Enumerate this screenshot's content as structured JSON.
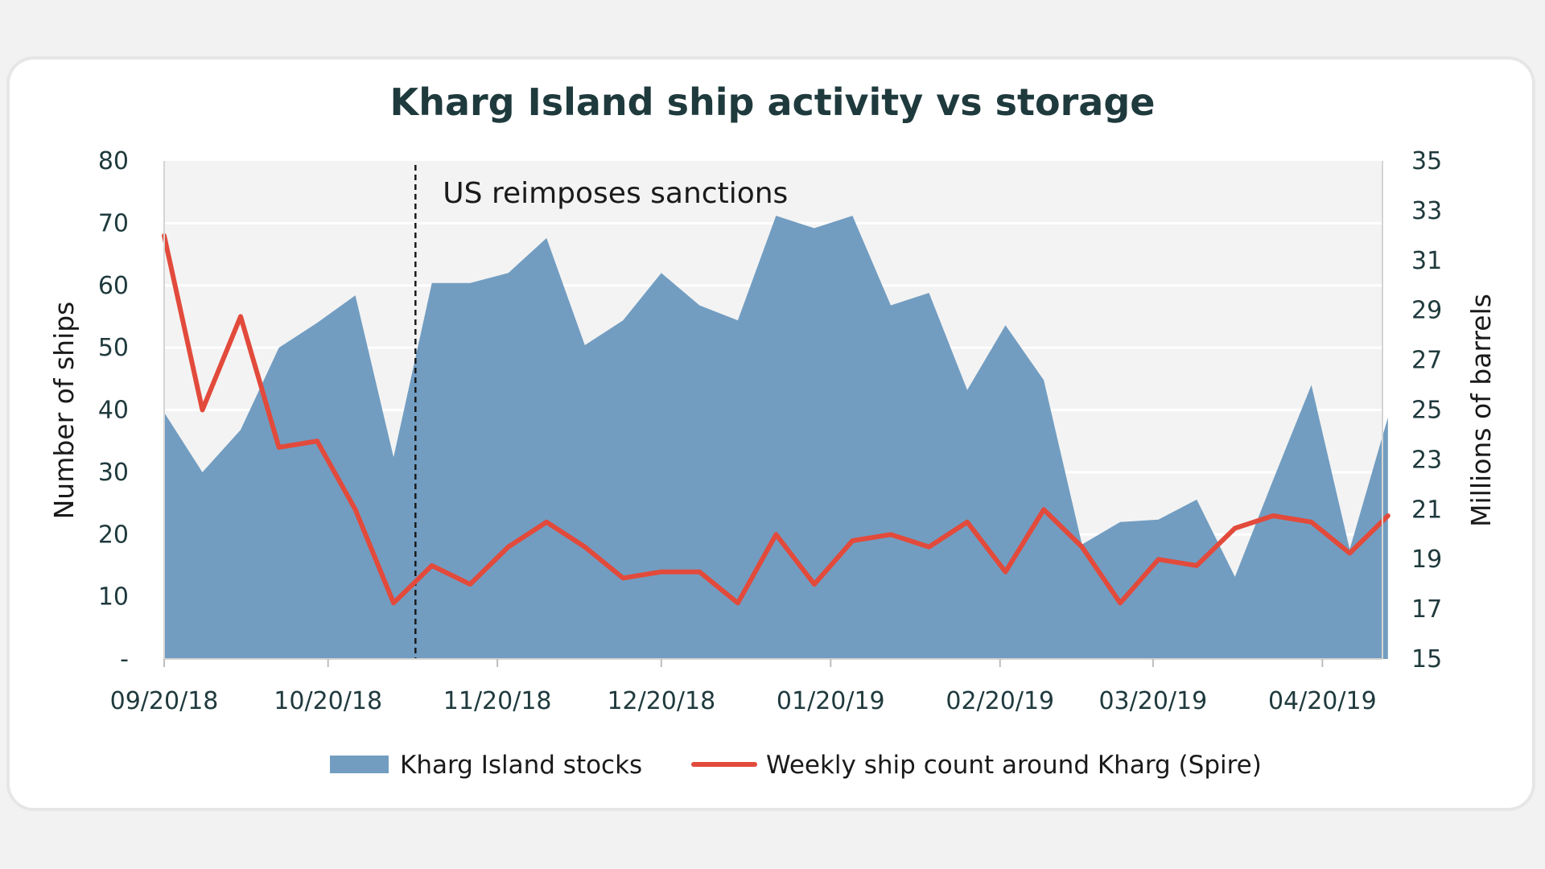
{
  "chart_data": {
    "type": "area+line",
    "title": "Kharg Island ship activity vs storage",
    "ylabel_left": "Number of ships",
    "ylabel_right": "Millions of barrels",
    "x_tick_labels": [
      "09/20/18",
      "10/20/18",
      "11/20/18",
      "12/20/18",
      "01/20/19",
      "02/20/19",
      "03/20/19",
      "04/20/19"
    ],
    "x_tick_dates": [
      "2018-09-20",
      "2018-10-20",
      "2018-11-20",
      "2018-12-20",
      "2019-01-20",
      "2019-02-20",
      "2019-03-20",
      "2019-04-20"
    ],
    "x_range": [
      "2018-09-20",
      "2019-05-01"
    ],
    "y_left_ticks": [
      "-",
      "10",
      "20",
      "30",
      "40",
      "50",
      "60",
      "70",
      "80"
    ],
    "y_left_range": [
      0,
      80
    ],
    "y_right_ticks": [
      "15",
      "17",
      "19",
      "21",
      "23",
      "25",
      "27",
      "29",
      "31",
      "33",
      "35"
    ],
    "y_right_range": [
      15,
      35
    ],
    "grid": "horizontal",
    "legend_position": "bottom",
    "annotation": {
      "text": "US reimposes sanctions",
      "date": "2018-11-05"
    },
    "series": [
      {
        "name": "Kharg Island stocks",
        "kind": "area",
        "axis": "right",
        "color": "#729dc1",
        "dates": [
          "2018-09-20",
          "2018-09-27",
          "2018-10-04",
          "2018-10-11",
          "2018-10-18",
          "2018-10-25",
          "2018-11-01",
          "2018-11-08",
          "2018-11-15",
          "2018-11-22",
          "2018-11-29",
          "2018-12-06",
          "2018-12-13",
          "2018-12-20",
          "2018-12-27",
          "2019-01-03",
          "2019-01-10",
          "2019-01-17",
          "2019-01-24",
          "2019-01-31",
          "2019-02-07",
          "2019-02-14",
          "2019-02-21",
          "2019-02-28",
          "2019-03-07",
          "2019-03-14",
          "2019-03-21",
          "2019-03-28",
          "2019-04-04",
          "2019-04-11",
          "2019-04-18",
          "2019-04-25",
          "2019-05-02"
        ],
        "values": [
          24.9,
          22.5,
          24.2,
          27.5,
          28.5,
          29.6,
          23.1,
          30.1,
          30.1,
          30.5,
          31.9,
          27.6,
          28.6,
          30.5,
          29.2,
          28.6,
          32.8,
          32.3,
          32.8,
          29.2,
          29.7,
          25.8,
          28.4,
          26.2,
          19.6,
          20.5,
          20.6,
          21.4,
          18.3,
          22.2,
          26.0,
          19.4,
          24.7
        ]
      },
      {
        "name": "Weekly ship count around Kharg (Spire)",
        "kind": "line",
        "axis": "left",
        "color": "#e24a3b",
        "dates": [
          "2018-09-20",
          "2018-09-27",
          "2018-10-04",
          "2018-10-11",
          "2018-10-18",
          "2018-10-25",
          "2018-11-01",
          "2018-11-08",
          "2018-11-15",
          "2018-11-22",
          "2018-11-29",
          "2018-12-06",
          "2018-12-13",
          "2018-12-20",
          "2018-12-27",
          "2019-01-03",
          "2019-01-10",
          "2019-01-17",
          "2019-01-24",
          "2019-01-31",
          "2019-02-07",
          "2019-02-14",
          "2019-02-21",
          "2019-02-28",
          "2019-03-07",
          "2019-03-14",
          "2019-03-21",
          "2019-03-28",
          "2019-04-04",
          "2019-04-11",
          "2019-04-18",
          "2019-04-25",
          "2019-05-02"
        ],
        "values": [
          68,
          40,
          55,
          34,
          35,
          24,
          9,
          15,
          12,
          18,
          22,
          18,
          13,
          14,
          14,
          9,
          20,
          12,
          19,
          20,
          18,
          22,
          14,
          24,
          18,
          9,
          16,
          15,
          21,
          23,
          22,
          17,
          23
        ]
      }
    ]
  }
}
